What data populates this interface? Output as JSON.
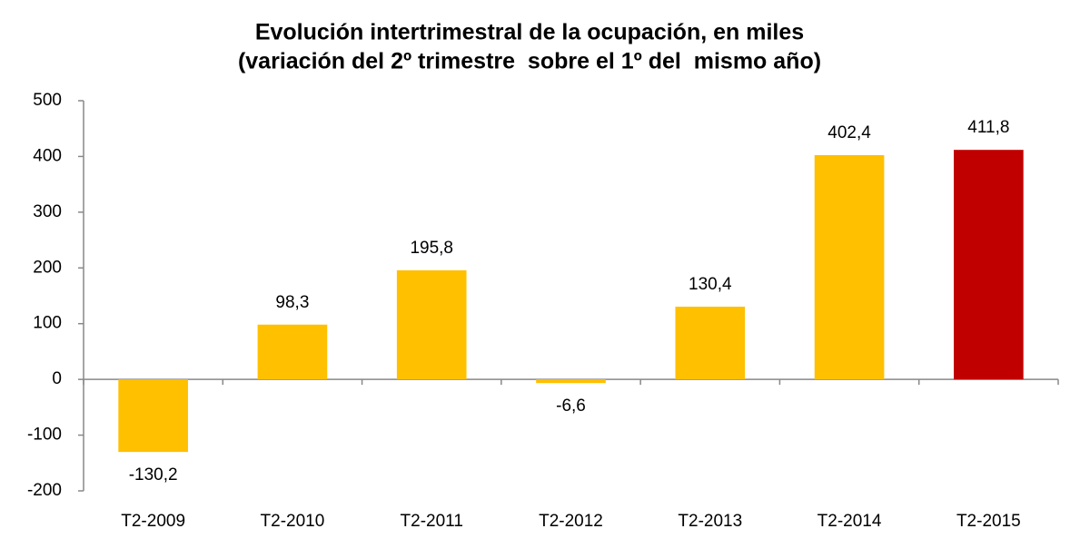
{
  "chart_data": {
    "type": "bar",
    "title": "Evolución intertrimestral de la ocupación, en miles",
    "subtitle": "(variación del 2º trimestre  sobre el 1º del  mismo año)",
    "categories": [
      "T2-2009",
      "T2-2010",
      "T2-2011",
      "T2-2012",
      "T2-2013",
      "T2-2014",
      "T2-2015"
    ],
    "values": [
      -130.2,
      98.3,
      195.8,
      -6.6,
      130.4,
      402.4,
      411.8
    ],
    "value_labels": [
      "-130,2",
      "98,3",
      "195,8",
      "-6,6",
      "130,4",
      "402,4",
      "411,8"
    ],
    "colors": [
      "#ffc000",
      "#ffc000",
      "#ffc000",
      "#ffc000",
      "#ffc000",
      "#ffc000",
      "#c00000"
    ],
    "ylim": [
      -200,
      500
    ],
    "yticks": [
      -200,
      -100,
      0,
      100,
      200,
      300,
      400,
      500
    ],
    "grid": false
  }
}
